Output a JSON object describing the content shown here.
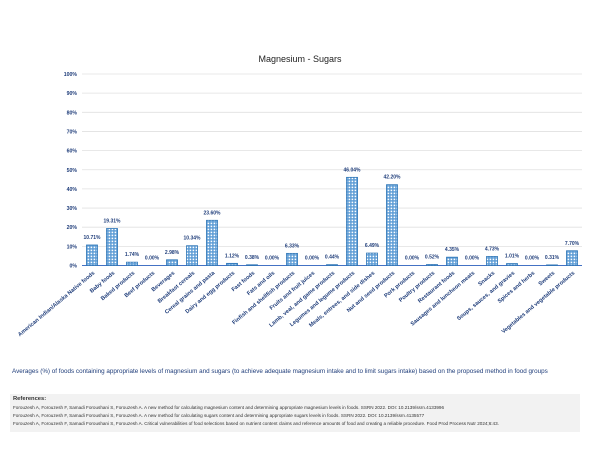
{
  "chart_data": {
    "type": "bar",
    "title": "Magnesium - Sugars",
    "xlabel": "",
    "ylabel": "",
    "ylim": [
      0,
      100
    ],
    "yticks": [
      "0%",
      "10%",
      "20%",
      "30%",
      "40%",
      "50%",
      "60%",
      "70%",
      "80%",
      "90%",
      "100%"
    ],
    "grid": true,
    "bar_color": "#5b9bd5",
    "bar_pattern": "dotted grid",
    "categories": [
      "American Indian/Alaska Native foods",
      "Baby foods",
      "Baked products",
      "Beef products",
      "Beverages",
      "Breakfast cereals",
      "Cereal grains and pasta",
      "Dairy and egg products",
      "Fast foods",
      "Fats and oils",
      "Finfish and shellfish products",
      "Fruits and fruit juices",
      "Lamb, veal, and game products",
      "Legumes and legume products",
      "Meals, entrees, and side dishes",
      "Nut and seed products",
      "Pork products",
      "Poultry products",
      "Restaurant foods",
      "Sausages and luncheon meats",
      "Snacks",
      "Soups, sauces, and gravies",
      "Spices and herbs",
      "Sweets",
      "Vegetables and vegetable products"
    ],
    "values": [
      10.71,
      19.31,
      1.74,
      0.0,
      2.98,
      10.34,
      23.6,
      1.12,
      0.38,
      0.0,
      6.33,
      0.0,
      0.44,
      46.04,
      6.49,
      42.2,
      0.0,
      0.52,
      4.35,
      0.0,
      4.73,
      1.01,
      0.0,
      0.31,
      7.7
    ],
    "data_labels": [
      "10.71%",
      "19.31%",
      "1.74%",
      "0.00%",
      "2.98%",
      "10.34%",
      "23.60%",
      "1.12%",
      "0.38%",
      "0.00%",
      "6.33%",
      "0.00%",
      "0.44%",
      "46.04%",
      "6.49%",
      "42.20%",
      "0.00%",
      "0.52%",
      "4.35%",
      "0.00%",
      "4.73%",
      "1.01%",
      "0.00%",
      "0.31%",
      "7.70%"
    ]
  },
  "caption": "Averages (%) of foods containing appropriate levels of magnesium and sugars (to achieve adequate magnesium intake and to limit sugars intake) based on the proposed method in food groups",
  "references": {
    "heading": "References:",
    "items": [
      "Forouzesh A, Forouzesh F, Samadi Foroushani S, Forouzesh A. A new method for calculating magnesium content and determining appropriate magnesium levels in foods. SSRN 2022. DOI: 10.2139/ssrn.4133996",
      "Forouzesh A, Forouzesh F, Samadi Foroushani S, Forouzesh A. A new method for calculating sugars content and determining appropriate sugars levels in foods. SSRN 2022. DOI: 10.2139/ssrn.4135577",
      "Forouzesh A, Forouzesh F, Samadi Foroushani S, Forouzesh A. Critical vulnerabilities of food selections based on nutrient content claims and reference amounts of food and creating a reliable procedure. Food Prod Process Nutr 2024;6:43."
    ]
  }
}
